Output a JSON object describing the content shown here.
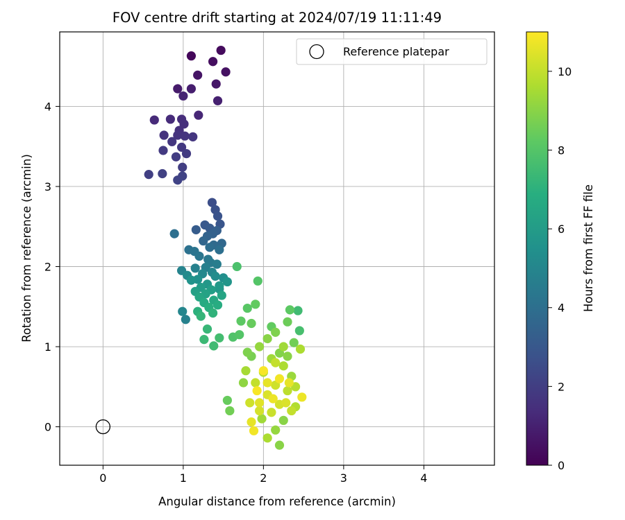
{
  "chart_data": {
    "type": "scatter",
    "title": "FOV centre drift starting at 2024/07/19 11:11:49",
    "xlabel": "Angular distance from reference (arcmin)",
    "ylabel": "Rotation from reference (arcmin)",
    "xlim": [
      -0.54,
      4.88
    ],
    "ylim": [
      -0.48,
      4.93
    ],
    "x_ticks": [
      "0",
      "1",
      "2",
      "3",
      "4"
    ],
    "y_ticks": [
      "0",
      "1",
      "2",
      "3",
      "4"
    ],
    "grid": true,
    "legend": {
      "position": "top-right",
      "entries": [
        "Reference platepar"
      ]
    },
    "reference_point": {
      "x": 0,
      "y": 0
    },
    "colorbar": {
      "label": "Hours from first FF file",
      "range": [
        0,
        11
      ],
      "ticks": [
        "0",
        "2",
        "4",
        "6",
        "8",
        "10"
      ],
      "colormap": "viridis"
    },
    "points": [
      [
        1.1,
        4.63,
        0.2
      ],
      [
        1.47,
        4.7,
        0.3
      ],
      [
        1.37,
        4.56,
        0.4
      ],
      [
        1.53,
        4.43,
        0.5
      ],
      [
        1.18,
        4.39,
        0.6
      ],
      [
        1.41,
        4.28,
        0.7
      ],
      [
        0.93,
        4.22,
        0.8
      ],
      [
        1.1,
        4.22,
        0.9
      ],
      [
        1.43,
        4.07,
        1.0
      ],
      [
        1.0,
        4.13,
        1.1
      ],
      [
        1.19,
        3.89,
        1.2
      ],
      [
        0.64,
        3.83,
        1.3
      ],
      [
        0.84,
        3.84,
        1.35
      ],
      [
        0.98,
        3.84,
        1.4
      ],
      [
        1.01,
        3.78,
        1.45
      ],
      [
        0.95,
        3.7,
        1.5
      ],
      [
        0.76,
        3.64,
        1.55
      ],
      [
        0.93,
        3.64,
        1.6
      ],
      [
        1.02,
        3.63,
        1.65
      ],
      [
        1.12,
        3.62,
        1.7
      ],
      [
        0.86,
        3.56,
        1.75
      ],
      [
        0.98,
        3.49,
        1.8
      ],
      [
        0.75,
        3.45,
        1.85
      ],
      [
        1.04,
        3.41,
        1.9
      ],
      [
        0.91,
        3.37,
        1.95
      ],
      [
        0.99,
        3.24,
        2.0
      ],
      [
        0.57,
        3.15,
        2.05
      ],
      [
        0.74,
        3.16,
        2.1
      ],
      [
        0.99,
        3.13,
        2.15
      ],
      [
        0.93,
        3.08,
        2.2
      ],
      [
        1.36,
        2.8,
        2.6
      ],
      [
        1.4,
        2.71,
        2.7
      ],
      [
        1.43,
        2.63,
        2.8
      ],
      [
        1.46,
        2.53,
        2.9
      ],
      [
        1.27,
        2.52,
        3.0
      ],
      [
        1.33,
        2.48,
        3.1
      ],
      [
        1.16,
        2.46,
        3.2
      ],
      [
        1.42,
        2.45,
        3.3
      ],
      [
        1.37,
        2.41,
        3.4
      ],
      [
        1.3,
        2.38,
        3.5
      ],
      [
        1.25,
        2.32,
        3.6
      ],
      [
        1.48,
        2.29,
        3.7
      ],
      [
        1.38,
        2.27,
        3.8
      ],
      [
        1.33,
        2.24,
        3.9
      ],
      [
        1.45,
        2.21,
        4.0
      ],
      [
        1.07,
        2.21,
        4.1
      ],
      [
        1.14,
        2.19,
        4.2
      ],
      [
        1.2,
        2.13,
        4.3
      ],
      [
        1.31,
        2.09,
        4.4
      ],
      [
        1.34,
        2.05,
        4.5
      ],
      [
        1.42,
        2.03,
        4.6
      ],
      [
        1.28,
        1.99,
        4.7
      ],
      [
        1.15,
        1.98,
        4.8
      ],
      [
        0.98,
        1.95,
        4.9
      ],
      [
        1.36,
        1.93,
        5.0
      ],
      [
        1.24,
        1.91,
        5.1
      ],
      [
        1.05,
        1.89,
        5.2
      ],
      [
        1.4,
        1.88,
        5.3
      ],
      [
        1.5,
        1.86,
        5.4
      ],
      [
        1.18,
        1.84,
        5.5
      ],
      [
        1.1,
        1.83,
        5.6
      ],
      [
        1.55,
        1.81,
        5.7
      ],
      [
        1.3,
        1.78,
        5.8
      ],
      [
        1.45,
        1.76,
        5.9
      ],
      [
        1.22,
        1.74,
        6.0
      ],
      [
        1.35,
        1.71,
        6.1
      ],
      [
        1.15,
        1.69,
        6.2
      ],
      [
        1.28,
        1.66,
        6.3
      ],
      [
        1.48,
        1.64,
        6.4
      ],
      [
        1.2,
        1.62,
        6.5
      ],
      [
        1.38,
        1.58,
        6.6
      ],
      [
        1.26,
        1.55,
        6.7
      ],
      [
        1.43,
        1.52,
        6.8
      ],
      [
        1.32,
        1.49,
        6.9
      ],
      [
        1.18,
        1.44,
        7.0
      ],
      [
        1.37,
        1.42,
        7.1
      ],
      [
        1.22,
        1.38,
        7.2
      ],
      [
        1.3,
        1.22,
        7.3
      ],
      [
        1.26,
        1.09,
        7.4
      ],
      [
        1.38,
        1.01,
        7.5
      ],
      [
        1.45,
        1.11,
        7.6
      ],
      [
        0.89,
        2.41,
        4.0
      ],
      [
        1.03,
        1.34,
        4.8
      ],
      [
        0.99,
        1.44,
        5.0
      ],
      [
        1.45,
        1.72,
        5.8
      ],
      [
        1.67,
        2.0,
        7.8
      ],
      [
        1.93,
        1.82,
        8.0
      ],
      [
        1.72,
        1.32,
        8.2
      ],
      [
        1.85,
        1.29,
        8.4
      ],
      [
        1.8,
        1.48,
        8.1
      ],
      [
        1.9,
        1.53,
        8.3
      ],
      [
        1.7,
        1.15,
        8.0
      ],
      [
        1.62,
        1.12,
        7.9
      ],
      [
        2.33,
        1.46,
        8.2
      ],
      [
        2.43,
        1.45,
        7.5
      ],
      [
        2.3,
        1.31,
        8.5
      ],
      [
        2.15,
        1.18,
        8.8
      ],
      [
        2.05,
        1.1,
        9.0
      ],
      [
        2.45,
        1.2,
        7.7
      ],
      [
        2.38,
        1.05,
        8.6
      ],
      [
        2.2,
        0.92,
        8.9
      ],
      [
        1.95,
        1.0,
        9.2
      ],
      [
        2.1,
        0.85,
        9.4
      ],
      [
        1.85,
        0.88,
        8.7
      ],
      [
        2.25,
        0.76,
        9.6
      ],
      [
        2.35,
        0.63,
        9.3
      ],
      [
        2.0,
        0.68,
        9.8
      ],
      [
        1.78,
        0.7,
        9.5
      ],
      [
        1.9,
        0.55,
        10.0
      ],
      [
        2.15,
        0.52,
        10.2
      ],
      [
        2.3,
        0.45,
        9.9
      ],
      [
        2.05,
        0.4,
        10.4
      ],
      [
        1.95,
        0.3,
        10.5
      ],
      [
        2.2,
        0.28,
        10.3
      ],
      [
        2.4,
        0.25,
        9.7
      ],
      [
        2.1,
        0.18,
        10.1
      ],
      [
        1.98,
        0.1,
        9.4
      ],
      [
        2.25,
        0.08,
        9.0
      ],
      [
        2.15,
        -0.04,
        9.2
      ],
      [
        2.05,
        -0.14,
        9.6
      ],
      [
        2.2,
        -0.23,
        9.0
      ],
      [
        1.85,
        0.06,
        10.6
      ],
      [
        1.88,
        -0.05,
        10.8
      ],
      [
        2.48,
        0.37,
        10.7
      ],
      [
        1.55,
        0.33,
        8.4
      ],
      [
        1.58,
        0.2,
        8.6
      ],
      [
        2.46,
        0.97,
        9.6
      ],
      [
        2.3,
        0.88,
        9.0
      ],
      [
        2.2,
        0.6,
        10.8
      ],
      [
        1.92,
        0.45,
        10.9
      ],
      [
        2.12,
        0.35,
        10.7
      ],
      [
        2.32,
        0.55,
        10.6
      ],
      [
        2.0,
        0.7,
        10.9
      ],
      [
        1.75,
        0.55,
        9.1
      ],
      [
        2.4,
        0.5,
        9.8
      ],
      [
        2.25,
        1.0,
        9.4
      ],
      [
        2.1,
        1.25,
        8.3
      ],
      [
        1.8,
        0.93,
        8.8
      ],
      [
        2.35,
        0.2,
        10.0
      ],
      [
        1.95,
        0.2,
        10.3
      ],
      [
        2.05,
        0.55,
        10.6
      ],
      [
        2.15,
        0.8,
        10.0
      ],
      [
        2.28,
        0.3,
        10.4
      ],
      [
        1.83,
        0.3,
        10.2
      ]
    ]
  }
}
